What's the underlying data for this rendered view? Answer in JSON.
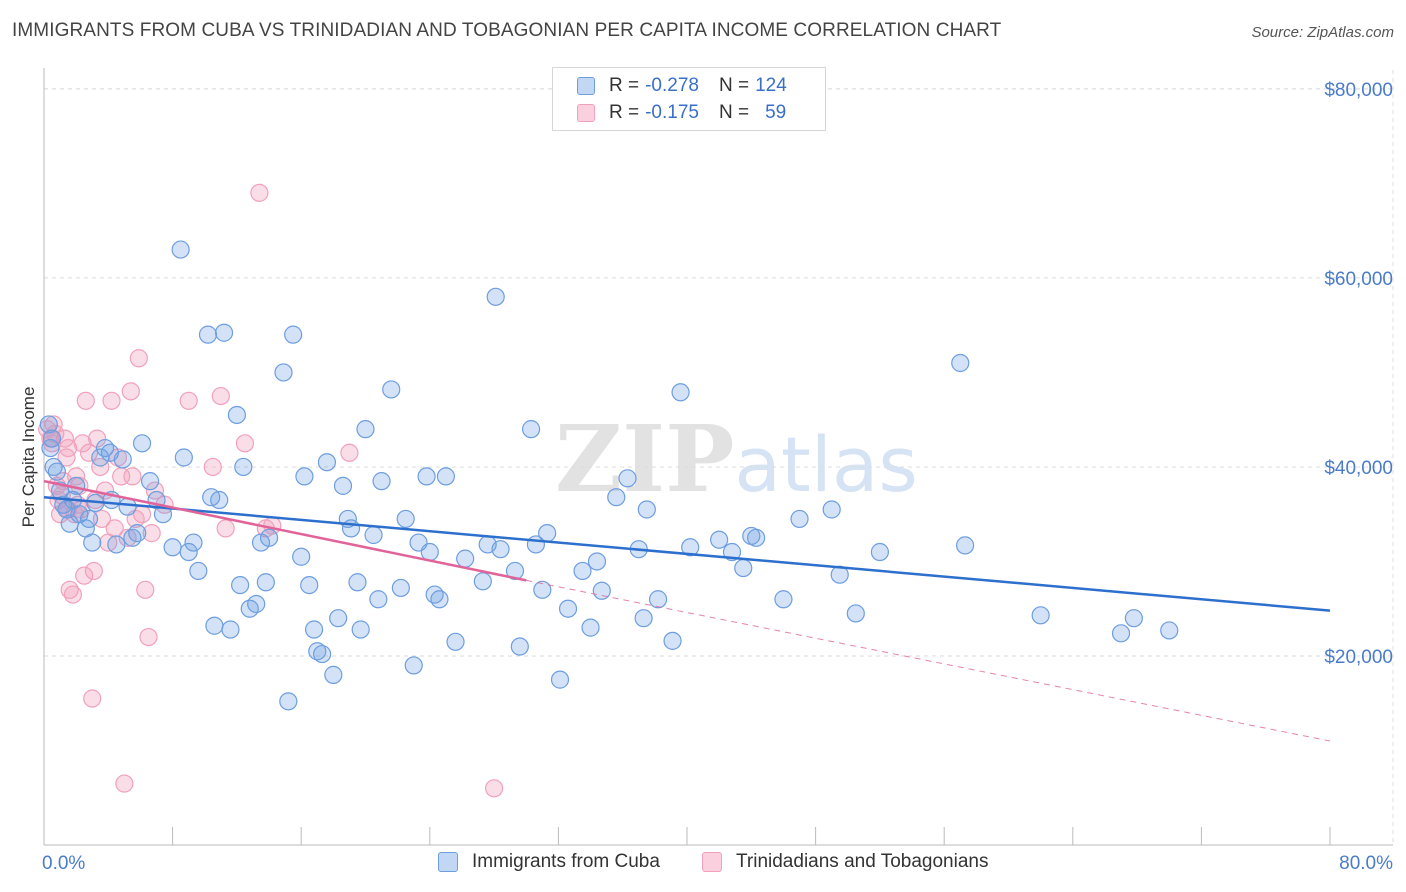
{
  "title": "IMMIGRANTS FROM CUBA VS TRINIDADIAN AND TOBAGONIAN PER CAPITA INCOME CORRELATION CHART",
  "source": "Source: ZipAtlas.com",
  "watermark": {
    "zip": "ZIP",
    "atlas": "atlas"
  },
  "legend": {
    "rows": [
      {
        "r_label": "R = ",
        "r_value": "-0.278",
        "n_label": "N = ",
        "n_value": "124"
      },
      {
        "r_label": "R = ",
        "r_value": "-0.175",
        "n_label": "N = ",
        "n_value": "59"
      }
    ]
  },
  "chart_data": {
    "type": "scatter",
    "xlabel": "",
    "ylabel": "Per Capita Income",
    "x_tick_labels": [
      "0.0%",
      "80.0%"
    ],
    "y_tick_labels": [
      "$20,000",
      "$40,000",
      "$60,000",
      "$80,000"
    ],
    "xlim": [
      0,
      80
    ],
    "ylim": [
      0,
      82000
    ],
    "grid": true,
    "legend_position": "top-center",
    "colors": {
      "cuba": "#6d9ee0",
      "trinidad": "#f2a0bb",
      "cuba_line": "#2d6fcc",
      "trinidad_line": "#e0649a"
    },
    "series": [
      {
        "name": "Immigrants from Cuba",
        "trend": {
          "x": [
            0,
            80
          ],
          "y": [
            36800,
            24800
          ],
          "style": "solid"
        },
        "points": [
          [
            0.3,
            44500
          ],
          [
            0.4,
            42000
          ],
          [
            0.5,
            43000
          ],
          [
            0.6,
            40000
          ],
          [
            0.8,
            39500
          ],
          [
            1.0,
            37500
          ],
          [
            1.2,
            36000
          ],
          [
            1.4,
            35500
          ],
          [
            1.6,
            34000
          ],
          [
            1.8,
            36500
          ],
          [
            2.0,
            38000
          ],
          [
            2.2,
            35000
          ],
          [
            2.6,
            33500
          ],
          [
            2.8,
            34500
          ],
          [
            3.0,
            32000
          ],
          [
            3.2,
            36200
          ],
          [
            3.5,
            41000
          ],
          [
            3.8,
            42000
          ],
          [
            4.1,
            41500
          ],
          [
            4.5,
            31800
          ],
          [
            4.9,
            40800
          ],
          [
            5.2,
            35800
          ],
          [
            5.5,
            32500
          ],
          [
            5.8,
            33000
          ],
          [
            6.1,
            42500
          ],
          [
            6.6,
            38500
          ],
          [
            7.0,
            36500
          ],
          [
            7.4,
            35000
          ],
          [
            8.0,
            31500
          ],
          [
            8.5,
            63000
          ],
          [
            8.7,
            41000
          ],
          [
            9.3,
            32000
          ],
          [
            9.6,
            29000
          ],
          [
            10.2,
            54000
          ],
          [
            10.4,
            36800
          ],
          [
            10.6,
            23200
          ],
          [
            10.9,
            36500
          ],
          [
            11.2,
            54200
          ],
          [
            11.6,
            22800
          ],
          [
            12.0,
            45500
          ],
          [
            12.2,
            27500
          ],
          [
            12.4,
            40000
          ],
          [
            12.8,
            25000
          ],
          [
            13.2,
            25500
          ],
          [
            13.5,
            32000
          ],
          [
            13.8,
            27800
          ],
          [
            14.0,
            32500
          ],
          [
            14.9,
            50000
          ],
          [
            15.2,
            15200
          ],
          [
            15.5,
            54000
          ],
          [
            16.2,
            39000
          ],
          [
            16.5,
            27500
          ],
          [
            16.8,
            22800
          ],
          [
            17.0,
            20500
          ],
          [
            17.3,
            20200
          ],
          [
            17.6,
            40500
          ],
          [
            18.0,
            18000
          ],
          [
            18.3,
            24000
          ],
          [
            18.6,
            38000
          ],
          [
            18.9,
            34500
          ],
          [
            19.1,
            33500
          ],
          [
            19.5,
            27800
          ],
          [
            19.7,
            22800
          ],
          [
            20.0,
            44000
          ],
          [
            20.5,
            32800
          ],
          [
            20.8,
            26000
          ],
          [
            21.0,
            38500
          ],
          [
            21.6,
            48200
          ],
          [
            22.2,
            27200
          ],
          [
            22.5,
            34500
          ],
          [
            23.0,
            19000
          ],
          [
            23.3,
            32000
          ],
          [
            23.8,
            39000
          ],
          [
            24.0,
            31000
          ],
          [
            24.3,
            26500
          ],
          [
            24.6,
            26000
          ],
          [
            25.0,
            39000
          ],
          [
            25.6,
            21500
          ],
          [
            26.2,
            30300
          ],
          [
            27.3,
            27900
          ],
          [
            27.6,
            31800
          ],
          [
            28.1,
            58000
          ],
          [
            28.4,
            31300
          ],
          [
            29.3,
            29000
          ],
          [
            29.6,
            21000
          ],
          [
            30.3,
            44000
          ],
          [
            30.6,
            31800
          ],
          [
            31.0,
            27000
          ],
          [
            31.3,
            33000
          ],
          [
            32.1,
            17500
          ],
          [
            32.6,
            25000
          ],
          [
            33.5,
            29000
          ],
          [
            34.0,
            23000
          ],
          [
            34.4,
            30000
          ],
          [
            34.7,
            26900
          ],
          [
            35.6,
            36800
          ],
          [
            36.3,
            38800
          ],
          [
            37.0,
            31300
          ],
          [
            37.3,
            24000
          ],
          [
            37.5,
            35500
          ],
          [
            38.2,
            26000
          ],
          [
            39.1,
            21600
          ],
          [
            39.6,
            47900
          ],
          [
            40.2,
            31500
          ],
          [
            42.0,
            32300
          ],
          [
            42.8,
            31000
          ],
          [
            43.5,
            29300
          ],
          [
            44.0,
            32700
          ],
          [
            44.3,
            32500
          ],
          [
            46.0,
            26000
          ],
          [
            47.0,
            34500
          ],
          [
            49.0,
            35500
          ],
          [
            49.5,
            28600
          ],
          [
            50.5,
            24500
          ],
          [
            52.0,
            31000
          ],
          [
            57.0,
            51000
          ],
          [
            57.3,
            31700
          ],
          [
            62.0,
            24300
          ],
          [
            67.0,
            22400
          ],
          [
            67.8,
            24000
          ],
          [
            70.0,
            22700
          ],
          [
            4.2,
            36500
          ],
          [
            9.0,
            31000
          ],
          [
            16.0,
            30500
          ]
        ]
      },
      {
        "name": "Trinidadians and Tobagonians",
        "trend": {
          "x": [
            0,
            30
          ],
          "y": [
            38500,
            28000
          ],
          "style": "solid",
          "extension": {
            "x": [
              30,
              80
            ],
            "y": [
              28000,
              11000
            ],
            "style": "dashed"
          }
        },
        "points": [
          [
            0.2,
            44000
          ],
          [
            0.4,
            43000
          ],
          [
            0.5,
            42500
          ],
          [
            0.6,
            44500
          ],
          [
            0.7,
            43500
          ],
          [
            0.8,
            38000
          ],
          [
            0.9,
            36500
          ],
          [
            1.0,
            35000
          ],
          [
            1.1,
            37000
          ],
          [
            1.2,
            38500
          ],
          [
            1.3,
            43000
          ],
          [
            1.4,
            41000
          ],
          [
            1.5,
            35500
          ],
          [
            1.6,
            27000
          ],
          [
            1.8,
            26500
          ],
          [
            1.9,
            35000
          ],
          [
            2.0,
            39000
          ],
          [
            2.1,
            36000
          ],
          [
            2.2,
            38000
          ],
          [
            2.4,
            42500
          ],
          [
            2.5,
            28500
          ],
          [
            2.6,
            47000
          ],
          [
            2.8,
            41500
          ],
          [
            3.0,
            15500
          ],
          [
            3.1,
            29000
          ],
          [
            3.2,
            36500
          ],
          [
            3.3,
            43000
          ],
          [
            3.5,
            40000
          ],
          [
            3.6,
            34500
          ],
          [
            3.8,
            37500
          ],
          [
            4.0,
            32000
          ],
          [
            4.2,
            47000
          ],
          [
            4.4,
            33500
          ],
          [
            4.6,
            41000
          ],
          [
            4.8,
            39000
          ],
          [
            5.0,
            6500
          ],
          [
            5.2,
            32500
          ],
          [
            5.4,
            48000
          ],
          [
            5.5,
            39000
          ],
          [
            5.7,
            34500
          ],
          [
            5.9,
            51500
          ],
          [
            6.1,
            35000
          ],
          [
            6.3,
            27000
          ],
          [
            6.5,
            22000
          ],
          [
            6.7,
            33000
          ],
          [
            6.9,
            37500
          ],
          [
            7.5,
            36000
          ],
          [
            9.0,
            47000
          ],
          [
            10.5,
            40000
          ],
          [
            11.0,
            47500
          ],
          [
            11.3,
            33500
          ],
          [
            12.5,
            42500
          ],
          [
            13.4,
            69000
          ],
          [
            13.8,
            33500
          ],
          [
            14.2,
            33800
          ],
          [
            19.0,
            41500
          ],
          [
            28.0,
            6000
          ],
          [
            1.5,
            42000
          ],
          [
            2.3,
            35500
          ]
        ]
      }
    ]
  }
}
